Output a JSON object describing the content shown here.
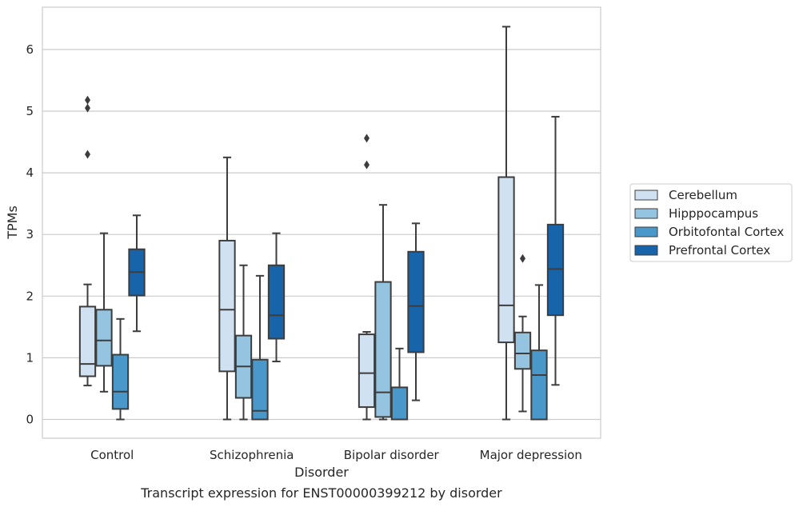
{
  "chart_data": {
    "type": "boxplot",
    "xlabel": "Disorder",
    "ylabel": "TPMs",
    "caption": "Transcript expression for ENST00000399212 by disorder",
    "ylim": [
      -0.3,
      6.65
    ],
    "yticks": [
      0,
      1,
      2,
      3,
      4,
      5,
      6
    ],
    "grid": "horizontal",
    "legend_position": "right",
    "categories": [
      "Control",
      "Schizophrenia",
      "Bipolar disorder",
      "Major depression"
    ],
    "series": [
      {
        "name": "Cerebellum",
        "color": "#d0e1f2",
        "boxes": [
          {
            "whisker_low": 0.55,
            "q1": 0.7,
            "median": 0.9,
            "q3": 1.83,
            "whisker_high": 2.19,
            "outliers": [
              4.3,
              5.05,
              5.18
            ]
          },
          {
            "whisker_low": 0.0,
            "q1": 0.78,
            "median": 1.78,
            "q3": 2.9,
            "whisker_high": 4.25,
            "outliers": []
          },
          {
            "whisker_low": 0.0,
            "q1": 0.2,
            "median": 0.75,
            "q3": 1.38,
            "whisker_high": 1.42,
            "outliers": [
              4.13,
              4.56
            ]
          },
          {
            "whisker_low": 0.0,
            "q1": 1.25,
            "median": 1.85,
            "q3": 3.93,
            "whisker_high": 6.37,
            "outliers": []
          }
        ]
      },
      {
        "name": "Hipppocampus",
        "color": "#94c4df",
        "boxes": [
          {
            "whisker_low": 0.45,
            "q1": 0.87,
            "median": 1.28,
            "q3": 1.78,
            "whisker_high": 3.02,
            "outliers": []
          },
          {
            "whisker_low": 0.0,
            "q1": 0.35,
            "median": 0.86,
            "q3": 1.36,
            "whisker_high": 2.5,
            "outliers": []
          },
          {
            "whisker_low": 0.0,
            "q1": 0.04,
            "median": 0.44,
            "q3": 2.23,
            "whisker_high": 3.48,
            "outliers": []
          },
          {
            "whisker_low": 0.13,
            "q1": 0.82,
            "median": 1.07,
            "q3": 1.41,
            "whisker_high": 1.67,
            "outliers": [
              2.61
            ]
          }
        ]
      },
      {
        "name": "Orbitofontal Cortex",
        "color": "#4a98c9",
        "boxes": [
          {
            "whisker_low": 0.0,
            "q1": 0.17,
            "median": 0.45,
            "q3": 1.05,
            "whisker_high": 1.63,
            "outliers": []
          },
          {
            "whisker_low": 0.0,
            "q1": 0.0,
            "median": 0.14,
            "q3": 0.97,
            "whisker_high": 2.33,
            "outliers": []
          },
          {
            "whisker_low": 0.0,
            "q1": 0.0,
            "median": 0.0,
            "q3": 0.52,
            "whisker_high": 1.15,
            "outliers": []
          },
          {
            "whisker_low": 0.0,
            "q1": 0.0,
            "median": 0.72,
            "q3": 1.12,
            "whisker_high": 2.18,
            "outliers": []
          }
        ]
      },
      {
        "name": "Prefrontal Cortex",
        "color": "#1764ab",
        "boxes": [
          {
            "whisker_low": 1.43,
            "q1": 2.01,
            "median": 2.39,
            "q3": 2.76,
            "whisker_high": 3.31,
            "outliers": []
          },
          {
            "whisker_low": 0.94,
            "q1": 1.31,
            "median": 1.69,
            "q3": 2.5,
            "whisker_high": 3.02,
            "outliers": []
          },
          {
            "whisker_low": 0.31,
            "q1": 1.09,
            "median": 1.84,
            "q3": 2.72,
            "whisker_high": 3.18,
            "outliers": []
          },
          {
            "whisker_low": 0.56,
            "q1": 1.69,
            "median": 2.44,
            "q3": 3.16,
            "whisker_high": 4.91,
            "outliers": []
          }
        ]
      }
    ]
  }
}
